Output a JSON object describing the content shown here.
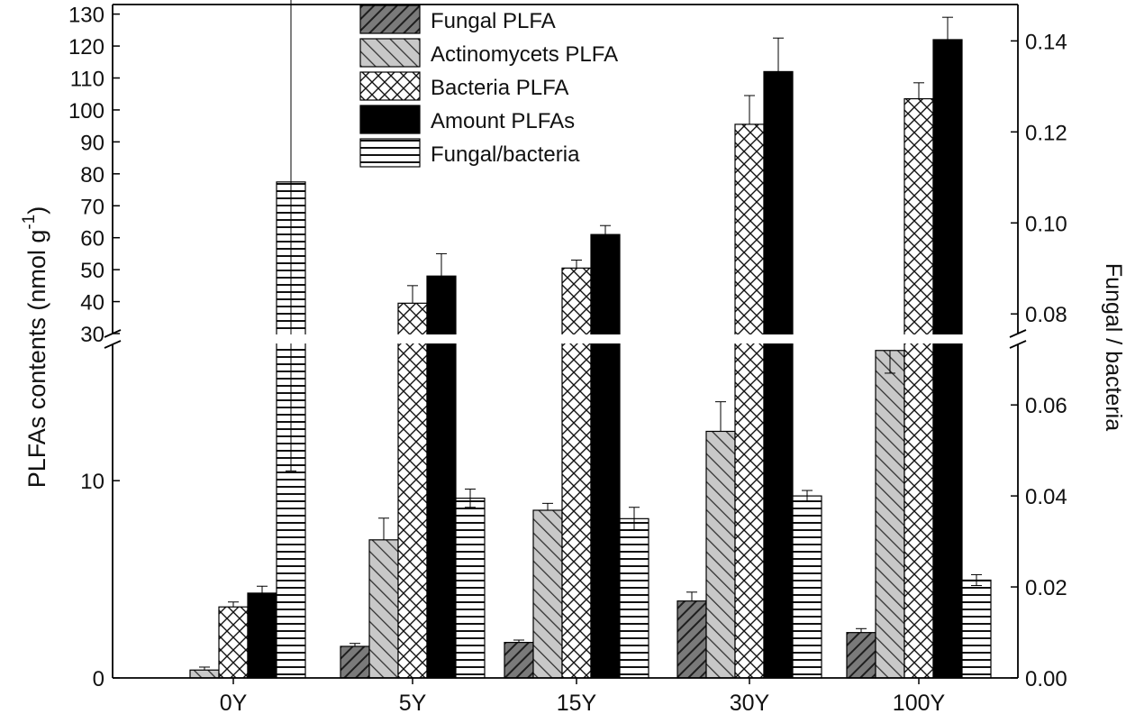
{
  "chart_data": {
    "type": "bar",
    "title": "",
    "xlabel": "",
    "categories": [
      "0Y",
      "5Y",
      "15Y",
      "30Y",
      "100Y"
    ],
    "left_axis": {
      "label": "PLFAs contents  (nmol g",
      "label_superscript": "-1",
      "label_suffix": ")",
      "broken": true,
      "lower_segment": {
        "range": [
          0,
          17
        ],
        "ticks": [
          0,
          10
        ]
      },
      "upper_segment": {
        "range": [
          30,
          133
        ],
        "ticks": [
          30,
          40,
          50,
          60,
          70,
          80,
          90,
          100,
          110,
          120,
          130
        ]
      }
    },
    "right_axis": {
      "label": "Fungal / bacteria",
      "range": [
        0,
        0.148
      ],
      "ticks": [
        "0.00",
        "0.02",
        "0.04",
        "0.06",
        "0.08",
        "0.10",
        "0.12",
        "0.14"
      ]
    },
    "series": [
      {
        "name": "Fungal PLFA",
        "axis": "left",
        "pattern": "diag-dark",
        "values": [
          0.0,
          1.6,
          1.8,
          3.9,
          2.3
        ],
        "errors": [
          0.0,
          0.15,
          0.12,
          0.45,
          0.2
        ]
      },
      {
        "name": "Actinomycets PLFA",
        "axis": "left",
        "pattern": "diag-light",
        "values": [
          0.4,
          7.0,
          8.5,
          12.5,
          16.6
        ],
        "errors": [
          0.15,
          1.1,
          0.35,
          1.5,
          1.0
        ]
      },
      {
        "name": "Bacteria PLFA",
        "axis": "left",
        "pattern": "crosshatch",
        "values": [
          3.6,
          39.5,
          50.5,
          95.5,
          103.5
        ],
        "errors": [
          0.25,
          5.5,
          2.5,
          9.0,
          5.0
        ]
      },
      {
        "name": "Amount PLFAs",
        "axis": "left",
        "pattern": "solid-black",
        "values": [
          4.3,
          48.0,
          61.0,
          112.0,
          122.0
        ],
        "errors": [
          0.35,
          7.0,
          2.8,
          10.5,
          7.0
        ]
      },
      {
        "name": "Fungal/bacteria",
        "axis": "right",
        "pattern": "horizontal",
        "values": [
          0.109,
          0.0395,
          0.035,
          0.04,
          0.0215
        ],
        "errors": [
          0.0635,
          0.002,
          0.0025,
          0.0012,
          0.0012
        ]
      }
    ],
    "legend_position": "top-center",
    "grid": false
  }
}
